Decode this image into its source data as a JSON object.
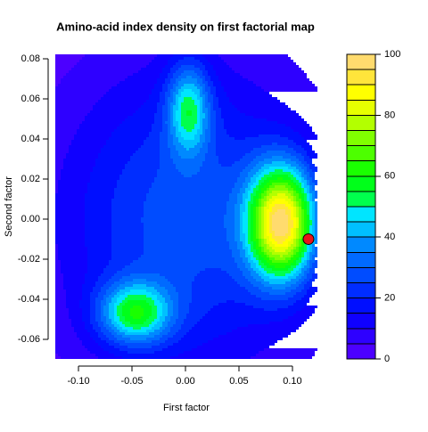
{
  "chart_data": {
    "type": "filled-contour",
    "title": "Amino-acid index density on first factorial map",
    "x_label": "First factor",
    "y_label": "Second factor",
    "xlim": [
      -0.1217,
      0.1242
    ],
    "ylim": [
      -0.0698,
      0.0822
    ],
    "xticks": [
      {
        "value": -0.1,
        "label": "-0.10"
      },
      {
        "value": -0.05,
        "label": "-0.05"
      },
      {
        "value": 0,
        "label": "0.00"
      },
      {
        "value": 0.05,
        "label": "0.05"
      },
      {
        "value": 0.1,
        "label": "0.10"
      }
    ],
    "yticks": [
      {
        "value": -0.06,
        "label": "-0.06"
      },
      {
        "value": -0.04,
        "label": "-0.04"
      },
      {
        "value": -0.02,
        "label": "-0.02"
      },
      {
        "value": 0,
        "label": "0.00"
      },
      {
        "value": 0.02,
        "label": "0.02"
      },
      {
        "value": 0.04,
        "label": "0.04"
      },
      {
        "value": 0.06,
        "label": "0.06"
      },
      {
        "value": 0.08,
        "label": "0.08"
      }
    ],
    "levels": [
      0,
      5,
      10,
      15,
      20,
      25,
      30,
      35,
      40,
      45,
      50,
      55,
      60,
      65,
      70,
      75,
      80,
      85,
      90,
      95,
      100
    ],
    "colors": [
      "#4C00FF",
      "#2E00FF",
      "#0F00FF",
      "#000EFF",
      "#002DFF",
      "#004CFF",
      "#006AFF",
      "#0089FF",
      "#00C0FF",
      "#00E5FF",
      "#00FF4D",
      "#00FF1A",
      "#1AFF00",
      "#4DFF00",
      "#80FF00",
      "#B3FF00",
      "#E6FF00",
      "#FFFF00",
      "#FFE53B",
      "#FFDB6E"
    ],
    "colorbar_ticks": [
      0,
      20,
      40,
      60,
      80,
      100
    ],
    "density_peaks": [
      {
        "x": 0.0,
        "y": 0.0,
        "value": 28,
        "sx": 0.085,
        "sy": 0.055
      },
      {
        "x": 0.09,
        "y": -0.002,
        "value": 84,
        "sx": 0.022,
        "sy": 0.02
      },
      {
        "x": -0.047,
        "y": -0.047,
        "value": 45,
        "sx": 0.024,
        "sy": 0.011
      },
      {
        "x": 0.003,
        "y": 0.055,
        "value": 38,
        "sx": 0.014,
        "sy": 0.016
      }
    ],
    "points": {
      "x": [
        0.115
      ],
      "y": [
        -0.01
      ],
      "color": "#e8141a"
    }
  }
}
